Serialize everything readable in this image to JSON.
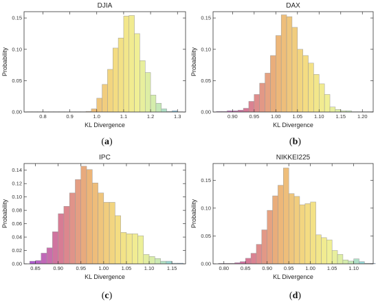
{
  "chart_data": [
    {
      "type": "bar",
      "title": "DJIA",
      "xlabel": "KL Divergence",
      "ylabel": "Probability",
      "panel_label": "(a)",
      "xlim": [
        0.73,
        1.33
      ],
      "ylim": [
        0,
        0.16
      ],
      "xticks": [
        0.8,
        0.9,
        1.0,
        1.1,
        1.2,
        1.3
      ],
      "xtick_labels": [
        "0.8",
        "0.9",
        "1.0",
        "1.1",
        "1.2",
        "1.3"
      ],
      "yticks": [
        0,
        0.05,
        0.1,
        0.15
      ],
      "ytick_labels": [
        "0.00",
        "0.05",
        "0.10",
        "0.15"
      ],
      "bin_width": 0.02,
      "bin_starts": [
        0.74,
        0.76,
        0.78,
        0.8,
        0.82,
        0.84,
        0.86,
        0.88,
        0.9,
        0.92,
        0.94,
        0.96,
        0.98,
        1.0,
        1.02,
        1.04,
        1.06,
        1.08,
        1.1,
        1.12,
        1.14,
        1.16,
        1.18,
        1.2,
        1.22,
        1.24,
        1.26,
        1.28,
        1.3
      ],
      "values": [
        0.0005,
        0.0005,
        0.0005,
        0.0005,
        0.0005,
        0.0005,
        0.0005,
        0.0005,
        0.0005,
        0.0005,
        0.0005,
        0.001,
        0.005,
        0.022,
        0.044,
        0.068,
        0.102,
        0.118,
        0.153,
        0.154,
        0.125,
        0.082,
        0.063,
        0.027,
        0.014,
        0.005,
        0.001,
        0.002,
        0.0005
      ],
      "grid": false
    },
    {
      "type": "bar",
      "title": "DAX",
      "xlabel": "KL Divergence",
      "ylabel": "Probability",
      "panel_label": "(b)",
      "xlim": [
        0.855,
        1.225
      ],
      "ylim": [
        0,
        0.16
      ],
      "xticks": [
        0.9,
        0.95,
        1.0,
        1.05,
        1.1,
        1.15,
        1.2
      ],
      "xtick_labels": [
        "0.90",
        "0.95",
        "1.00",
        "1.05",
        "1.10",
        "1.15",
        "1.20"
      ],
      "yticks": [
        0,
        0.05,
        0.1,
        0.15
      ],
      "ytick_labels": [
        "0.00",
        "0.05",
        "0.10",
        "0.15"
      ],
      "bin_width": 0.0125,
      "bin_starts": [
        0.8625,
        0.875,
        0.8875,
        0.9,
        0.9125,
        0.925,
        0.9375,
        0.95,
        0.9625,
        0.975,
        0.9875,
        1.0,
        1.0125,
        1.025,
        1.0375,
        1.05,
        1.0625,
        1.075,
        1.0875,
        1.1,
        1.1125,
        1.125,
        1.1375,
        1.15,
        1.1625,
        1.175,
        1.1875,
        1.2,
        1.2125
      ],
      "values": [
        0.001,
        0.001,
        0.002,
        0.002,
        0.003,
        0.006,
        0.017,
        0.028,
        0.046,
        0.062,
        0.09,
        0.122,
        0.155,
        0.152,
        0.135,
        0.1,
        0.09,
        0.078,
        0.06,
        0.045,
        0.028,
        0.008,
        0.004,
        0.002,
        0.002,
        0.0005,
        0.0005,
        0.0005,
        0.0005
      ],
      "grid": false
    },
    {
      "type": "bar",
      "title": "IPC",
      "xlabel": "KL Divergence",
      "ylabel": "Probability",
      "panel_label": "(c)",
      "xlim": [
        0.825,
        1.18
      ],
      "ylim": [
        0,
        0.15
      ],
      "xticks": [
        0.85,
        0.9,
        0.95,
        1.0,
        1.05,
        1.1,
        1.15
      ],
      "xtick_labels": [
        "0.85",
        "0.90",
        "0.95",
        "1.00",
        "1.05",
        "1.10",
        "1.15"
      ],
      "yticks": [
        0,
        0.02,
        0.04,
        0.06,
        0.08,
        0.1,
        0.12,
        0.14
      ],
      "ytick_labels": [
        "0.00",
        "0.02",
        "0.04",
        "0.06",
        "0.08",
        "0.10",
        "0.12",
        "0.14"
      ],
      "bin_width": 0.0125,
      "bin_starts": [
        0.8375,
        0.85,
        0.8625,
        0.875,
        0.8875,
        0.9,
        0.9125,
        0.925,
        0.9375,
        0.95,
        0.9625,
        0.975,
        0.9875,
        1.0,
        1.0125,
        1.025,
        1.0375,
        1.05,
        1.0625,
        1.075,
        1.0875,
        1.1,
        1.1125,
        1.125,
        1.1375,
        1.15,
        1.1625
      ],
      "values": [
        0.004,
        0.005,
        0.016,
        0.024,
        0.048,
        0.075,
        0.086,
        0.106,
        0.126,
        0.146,
        0.141,
        0.121,
        0.106,
        0.092,
        0.092,
        0.072,
        0.047,
        0.045,
        0.045,
        0.042,
        0.014,
        0.011,
        0.008,
        0.004,
        0.004,
        0.001,
        0.001
      ],
      "grid": false
    },
    {
      "type": "bar",
      "title": "NIKKEI225",
      "xlabel": "KL Divergence",
      "ylabel": "Probability",
      "panel_label": "(d)",
      "xlim": [
        0.775,
        1.145
      ],
      "ylim": [
        0,
        0.18
      ],
      "xticks": [
        0.8,
        0.85,
        0.9,
        0.95,
        1.0,
        1.05,
        1.1
      ],
      "xtick_labels": [
        "0.80",
        "0.85",
        "0.90",
        "0.95",
        "1.00",
        "1.05",
        "1.10"
      ],
      "yticks": [
        0,
        0.05,
        0.1,
        0.15
      ],
      "ytick_labels": [
        "0.00",
        "0.05",
        "0.10",
        "0.15"
      ],
      "bin_width": 0.0125,
      "bin_starts": [
        0.7875,
        0.8,
        0.8125,
        0.825,
        0.8375,
        0.85,
        0.8625,
        0.875,
        0.8875,
        0.9,
        0.9125,
        0.925,
        0.9375,
        0.95,
        0.9625,
        0.975,
        0.9875,
        1.0,
        1.0125,
        1.025,
        1.0375,
        1.05,
        1.0625,
        1.075,
        1.0875,
        1.1,
        1.1125,
        1.125,
        1.1375
      ],
      "values": [
        0.001,
        0.001,
        0.001,
        0.002,
        0.004,
        0.01,
        0.019,
        0.035,
        0.061,
        0.096,
        0.122,
        0.141,
        0.172,
        0.126,
        0.121,
        0.106,
        0.108,
        0.111,
        0.052,
        0.047,
        0.043,
        0.024,
        0.017,
        0.007,
        0.005,
        0.009,
        0.004,
        0.001,
        0.001
      ],
      "grid": false
    }
  ]
}
